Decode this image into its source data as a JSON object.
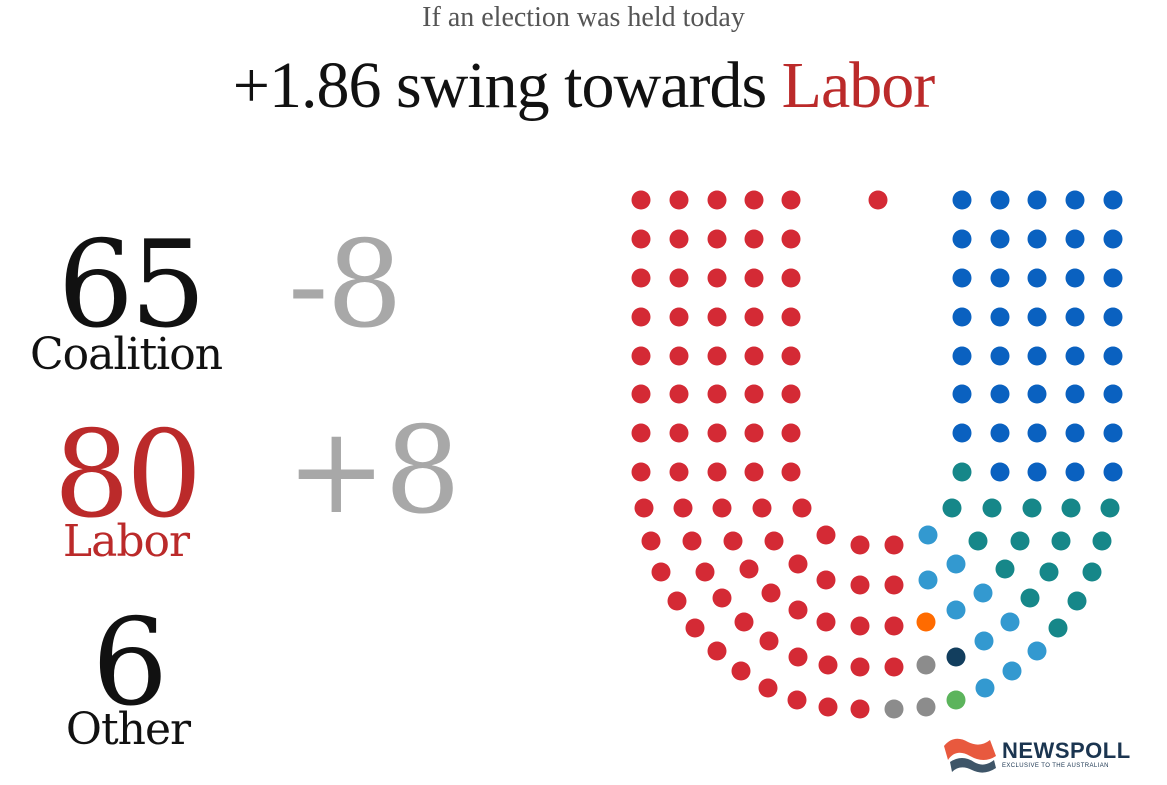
{
  "header": {
    "subtitle": "If an election was held today",
    "headline_prefix": "+1.86 swing towards ",
    "headline_party": "Labor"
  },
  "results": [
    {
      "party": "Coalition",
      "seats": "65",
      "change": "-8"
    },
    {
      "party": "Labor",
      "seats": "80",
      "change": "+8"
    },
    {
      "party": "Other",
      "seats": "6",
      "change": ""
    }
  ],
  "colors": {
    "labor": "#d42a35",
    "coalition": "#0a61c0",
    "coalition_alt": "#168789",
    "other_light_blue": "#3399d0",
    "other_orange": "#ff6b00",
    "other_navy": "#123e5e",
    "other_grey": "#8c8c8c",
    "other_green": "#5cb45c",
    "labor_text": "#bb2a2a",
    "change_text": "#a8a8a8"
  },
  "logo": {
    "name": "NEWSPOLL",
    "tagline": "EXCLUSIVE TO THE AUSTRALIAN"
  },
  "chart_data": {
    "type": "seat-chart",
    "total_seats": 151,
    "groups": [
      {
        "name": "Labor",
        "seats": 80,
        "color": "#d42a35"
      },
      {
        "name": "Coalition",
        "seats": 65,
        "color": "#0a61c0"
      },
      {
        "name": "Other",
        "seats": 6,
        "color": "#8c8c8c"
      }
    ]
  }
}
